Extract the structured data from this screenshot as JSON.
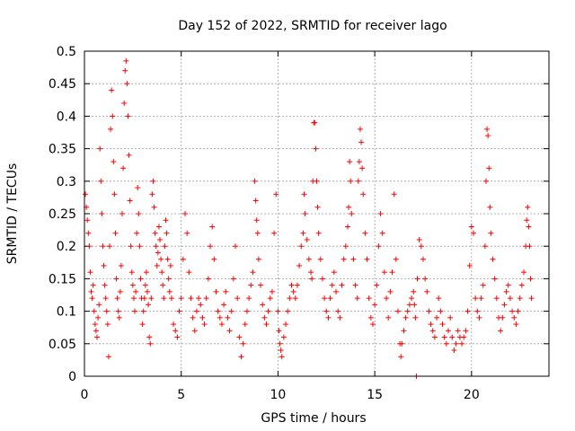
{
  "chart_data": {
    "type": "scatter",
    "title": "Day 152 of 2022, SRMTID for receiver lago",
    "xlabel": "GPS time / hours",
    "ylabel": "SRMTID / TECUs",
    "xlim": [
      0,
      24
    ],
    "ylim": [
      0,
      0.5
    ],
    "xticks": [
      0,
      5,
      10,
      15,
      20
    ],
    "yticks": [
      0,
      0.05,
      0.1,
      0.15,
      0.2,
      0.25,
      0.3,
      0.35,
      0.4,
      0.45,
      0.5
    ],
    "xtick_labels": [
      "0",
      "5",
      "10",
      "15",
      "20"
    ],
    "ytick_labels": [
      "0",
      "0.05",
      "0.1",
      "0.15",
      "0.2",
      "0.25",
      "0.3",
      "0.35",
      "0.4",
      "0.45",
      "0.5"
    ],
    "grid": true,
    "marker": "+",
    "color": "#ff0000",
    "series": [
      {
        "name": "SRMTID",
        "points": [
          [
            0.05,
            0.28
          ],
          [
            0.1,
            0.26
          ],
          [
            0.15,
            0.24
          ],
          [
            0.2,
            0.22
          ],
          [
            0.25,
            0.2
          ],
          [
            0.3,
            0.16
          ],
          [
            0.35,
            0.13
          ],
          [
            0.4,
            0.12
          ],
          [
            0.45,
            0.14
          ],
          [
            0.5,
            0.1
          ],
          [
            0.55,
            0.08
          ],
          [
            0.6,
            0.07
          ],
          [
            0.65,
            0.06
          ],
          [
            0.7,
            0.09
          ],
          [
            0.75,
            0.11
          ],
          [
            0.8,
            0.35
          ],
          [
            0.85,
            0.3
          ],
          [
            0.9,
            0.25
          ],
          [
            0.95,
            0.2
          ],
          [
            1.0,
            0.17
          ],
          [
            1.05,
            0.14
          ],
          [
            1.1,
            0.12
          ],
          [
            1.15,
            0.1
          ],
          [
            1.2,
            0.08
          ],
          [
            1.25,
            0.03
          ],
          [
            1.3,
            0.2
          ],
          [
            1.35,
            0.38
          ],
          [
            1.4,
            0.44
          ],
          [
            1.45,
            0.4
          ],
          [
            1.5,
            0.33
          ],
          [
            1.55,
            0.28
          ],
          [
            1.6,
            0.22
          ],
          [
            1.65,
            0.15
          ],
          [
            1.7,
            0.12
          ],
          [
            1.75,
            0.1
          ],
          [
            1.8,
            0.09
          ],
          [
            1.85,
            0.13
          ],
          [
            1.9,
            0.17
          ],
          [
            1.95,
            0.25
          ],
          [
            2.0,
            0.32
          ],
          [
            2.05,
            0.42
          ],
          [
            2.1,
            0.47
          ],
          [
            2.15,
            0.485
          ],
          [
            2.2,
            0.45
          ],
          [
            2.25,
            0.4
          ],
          [
            2.3,
            0.34
          ],
          [
            2.35,
            0.27
          ],
          [
            2.4,
            0.2
          ],
          [
            2.45,
            0.16
          ],
          [
            2.5,
            0.14
          ],
          [
            2.55,
            0.12
          ],
          [
            2.6,
            0.1
          ],
          [
            2.65,
            0.13
          ],
          [
            2.7,
            0.22
          ],
          [
            2.75,
            0.29
          ],
          [
            2.8,
            0.25
          ],
          [
            2.85,
            0.2
          ],
          [
            2.9,
            0.15
          ],
          [
            2.95,
            0.12
          ],
          [
            3.0,
            0.08
          ],
          [
            3.05,
            0.1
          ],
          [
            3.1,
            0.12
          ],
          [
            3.15,
            0.14
          ],
          [
            3.2,
            0.16
          ],
          [
            3.25,
            0.13
          ],
          [
            3.3,
            0.11
          ],
          [
            3.35,
            0.06
          ],
          [
            3.4,
            0.05
          ],
          [
            3.45,
            0.12
          ],
          [
            3.5,
            0.28
          ],
          [
            3.55,
            0.3
          ],
          [
            3.6,
            0.26
          ],
          [
            3.65,
            0.22
          ],
          [
            3.7,
            0.2
          ],
          [
            3.75,
            0.17
          ],
          [
            3.8,
            0.19
          ],
          [
            3.85,
            0.23
          ],
          [
            3.9,
            0.21
          ],
          [
            3.95,
            0.18
          ],
          [
            4.0,
            0.16
          ],
          [
            4.05,
            0.14
          ],
          [
            4.1,
            0.12
          ],
          [
            4.15,
            0.2
          ],
          [
            4.2,
            0.24
          ],
          [
            4.25,
            0.22
          ],
          [
            4.3,
            0.18
          ],
          [
            4.35,
            0.15
          ],
          [
            4.4,
            0.13
          ],
          [
            4.45,
            0.17
          ],
          [
            4.5,
            0.12
          ],
          [
            4.6,
            0.08
          ],
          [
            4.7,
            0.07
          ],
          [
            4.8,
            0.06
          ],
          [
            4.9,
            0.1
          ],
          [
            5.0,
            0.12
          ],
          [
            5.1,
            0.18
          ],
          [
            5.2,
            0.25
          ],
          [
            5.3,
            0.22
          ],
          [
            5.4,
            0.16
          ],
          [
            5.5,
            0.12
          ],
          [
            5.6,
            0.09
          ],
          [
            5.7,
            0.07
          ],
          [
            5.8,
            0.1
          ],
          [
            5.9,
            0.12
          ],
          [
            6.0,
            0.11
          ],
          [
            6.1,
            0.09
          ],
          [
            6.2,
            0.08
          ],
          [
            6.3,
            0.12
          ],
          [
            6.4,
            0.15
          ],
          [
            6.5,
            0.2
          ],
          [
            6.6,
            0.23
          ],
          [
            6.7,
            0.18
          ],
          [
            6.8,
            0.13
          ],
          [
            6.9,
            0.1
          ],
          [
            7.0,
            0.09
          ],
          [
            7.1,
            0.08
          ],
          [
            7.2,
            0.11
          ],
          [
            7.3,
            0.13
          ],
          [
            7.4,
            0.09
          ],
          [
            7.5,
            0.07
          ],
          [
            7.6,
            0.1
          ],
          [
            7.7,
            0.15
          ],
          [
            7.8,
            0.2
          ],
          [
            7.9,
            0.12
          ],
          [
            8.0,
            0.06
          ],
          [
            8.1,
            0.03
          ],
          [
            8.2,
            0.05
          ],
          [
            8.3,
            0.08
          ],
          [
            8.4,
            0.1
          ],
          [
            8.5,
            0.12
          ],
          [
            8.6,
            0.14
          ],
          [
            8.7,
            0.16
          ],
          [
            8.8,
            0.3
          ],
          [
            8.85,
            0.27
          ],
          [
            8.9,
            0.24
          ],
          [
            8.95,
            0.22
          ],
          [
            9.0,
            0.18
          ],
          [
            9.1,
            0.14
          ],
          [
            9.2,
            0.11
          ],
          [
            9.3,
            0.09
          ],
          [
            9.4,
            0.08
          ],
          [
            9.5,
            0.1
          ],
          [
            9.6,
            0.12
          ],
          [
            9.7,
            0.13
          ],
          [
            9.8,
            0.22
          ],
          [
            9.9,
            0.28
          ],
          [
            10.0,
            0.1
          ],
          [
            10.05,
            0.07
          ],
          [
            10.1,
            0.05
          ],
          [
            10.15,
            0.04
          ],
          [
            10.2,
            0.03
          ],
          [
            10.3,
            0.06
          ],
          [
            10.4,
            0.08
          ],
          [
            10.5,
            0.1
          ],
          [
            10.6,
            0.12
          ],
          [
            10.7,
            0.14
          ],
          [
            10.8,
            0.13
          ],
          [
            10.9,
            0.12
          ],
          [
            11.0,
            0.14
          ],
          [
            11.1,
            0.17
          ],
          [
            11.2,
            0.2
          ],
          [
            11.3,
            0.22
          ],
          [
            11.35,
            0.28
          ],
          [
            11.4,
            0.25
          ],
          [
            11.5,
            0.21
          ],
          [
            11.6,
            0.18
          ],
          [
            11.7,
            0.16
          ],
          [
            11.75,
            0.15
          ],
          [
            11.8,
            0.3
          ],
          [
            11.85,
            0.39
          ],
          [
            11.9,
            0.39
          ],
          [
            11.95,
            0.35
          ],
          [
            12.0,
            0.3
          ],
          [
            12.05,
            0.26
          ],
          [
            12.1,
            0.22
          ],
          [
            12.2,
            0.18
          ],
          [
            12.3,
            0.15
          ],
          [
            12.4,
            0.12
          ],
          [
            12.5,
            0.1
          ],
          [
            12.6,
            0.09
          ],
          [
            12.7,
            0.12
          ],
          [
            12.8,
            0.14
          ],
          [
            12.9,
            0.16
          ],
          [
            13.0,
            0.13
          ],
          [
            13.1,
            0.1
          ],
          [
            13.2,
            0.09
          ],
          [
            13.3,
            0.14
          ],
          [
            13.4,
            0.18
          ],
          [
            13.5,
            0.2
          ],
          [
            13.6,
            0.23
          ],
          [
            13.65,
            0.26
          ],
          [
            13.7,
            0.33
          ],
          [
            13.75,
            0.3
          ],
          [
            13.8,
            0.25
          ],
          [
            13.9,
            0.18
          ],
          [
            14.0,
            0.14
          ],
          [
            14.1,
            0.12
          ],
          [
            14.15,
            0.3
          ],
          [
            14.2,
            0.33
          ],
          [
            14.25,
            0.38
          ],
          [
            14.3,
            0.36
          ],
          [
            14.35,
            0.32
          ],
          [
            14.4,
            0.28
          ],
          [
            14.5,
            0.22
          ],
          [
            14.6,
            0.18
          ],
          [
            14.7,
            0.12
          ],
          [
            14.8,
            0.09
          ],
          [
            14.9,
            0.08
          ],
          [
            15.0,
            0.11
          ],
          [
            15.1,
            0.14
          ],
          [
            15.2,
            0.2
          ],
          [
            15.3,
            0.25
          ],
          [
            15.4,
            0.22
          ],
          [
            15.5,
            0.16
          ],
          [
            15.6,
            0.12
          ],
          [
            15.7,
            0.09
          ],
          [
            15.8,
            0.13
          ],
          [
            15.9,
            0.16
          ],
          [
            16.0,
            0.28
          ],
          [
            16.1,
            0.18
          ],
          [
            16.2,
            0.1
          ],
          [
            16.3,
            0.05
          ],
          [
            16.35,
            0.03
          ],
          [
            16.4,
            0.05
          ],
          [
            16.5,
            0.07
          ],
          [
            16.6,
            0.09
          ],
          [
            16.7,
            0.1
          ],
          [
            16.8,
            0.11
          ],
          [
            16.9,
            0.12
          ],
          [
            17.0,
            0.13
          ],
          [
            17.05,
            0.11
          ],
          [
            17.1,
            0.09
          ],
          [
            17.15,
            0.0
          ],
          [
            17.2,
            0.15
          ],
          [
            17.3,
            0.21
          ],
          [
            17.4,
            0.2
          ],
          [
            17.5,
            0.18
          ],
          [
            17.6,
            0.15
          ],
          [
            17.7,
            0.13
          ],
          [
            17.8,
            0.1
          ],
          [
            17.9,
            0.08
          ],
          [
            18.0,
            0.07
          ],
          [
            18.1,
            0.06
          ],
          [
            18.2,
            0.09
          ],
          [
            18.3,
            0.12
          ],
          [
            18.4,
            0.1
          ],
          [
            18.5,
            0.08
          ],
          [
            18.6,
            0.06
          ],
          [
            18.7,
            0.05
          ],
          [
            18.8,
            0.07
          ],
          [
            18.9,
            0.09
          ],
          [
            19.0,
            0.06
          ],
          [
            19.1,
            0.04
          ],
          [
            19.2,
            0.05
          ],
          [
            19.3,
            0.07
          ],
          [
            19.4,
            0.06
          ],
          [
            19.5,
            0.05
          ],
          [
            19.6,
            0.06
          ],
          [
            19.7,
            0.07
          ],
          [
            19.8,
            0.1
          ],
          [
            19.9,
            0.17
          ],
          [
            20.0,
            0.23
          ],
          [
            20.1,
            0.22
          ],
          [
            20.2,
            0.12
          ],
          [
            20.3,
            0.1
          ],
          [
            20.4,
            0.09
          ],
          [
            20.5,
            0.12
          ],
          [
            20.6,
            0.14
          ],
          [
            20.7,
            0.2
          ],
          [
            20.75,
            0.3
          ],
          [
            20.8,
            0.38
          ],
          [
            20.85,
            0.37
          ],
          [
            20.9,
            0.32
          ],
          [
            20.95,
            0.26
          ],
          [
            21.0,
            0.22
          ],
          [
            21.1,
            0.18
          ],
          [
            21.2,
            0.15
          ],
          [
            21.3,
            0.12
          ],
          [
            21.4,
            0.09
          ],
          [
            21.5,
            0.07
          ],
          [
            21.6,
            0.09
          ],
          [
            21.7,
            0.11
          ],
          [
            21.8,
            0.13
          ],
          [
            21.9,
            0.14
          ],
          [
            22.0,
            0.12
          ],
          [
            22.1,
            0.1
          ],
          [
            22.2,
            0.09
          ],
          [
            22.3,
            0.08
          ],
          [
            22.4,
            0.1
          ],
          [
            22.5,
            0.12
          ],
          [
            22.6,
            0.14
          ],
          [
            22.7,
            0.16
          ],
          [
            22.8,
            0.2
          ],
          [
            22.85,
            0.24
          ],
          [
            22.9,
            0.26
          ],
          [
            22.95,
            0.23
          ],
          [
            23.0,
            0.2
          ],
          [
            23.05,
            0.15
          ],
          [
            23.1,
            0.12
          ]
        ]
      }
    ]
  }
}
